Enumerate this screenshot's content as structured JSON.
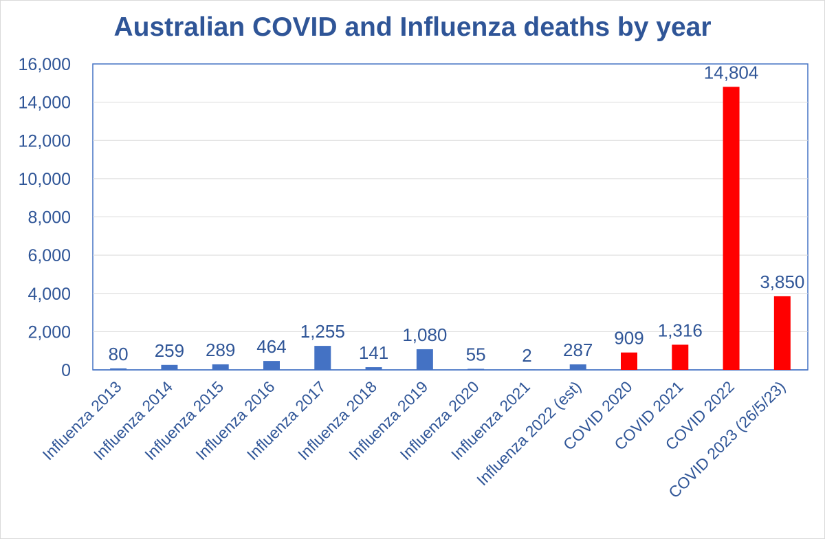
{
  "chart_data": {
    "type": "bar",
    "title": "Australian COVID and Influenza deaths by year",
    "xlabel": "",
    "ylabel": "",
    "ylim": [
      0,
      16000
    ],
    "yticks": [
      0,
      2000,
      4000,
      6000,
      8000,
      10000,
      12000,
      14000,
      16000
    ],
    "grid": true,
    "legend": "none",
    "categories": [
      "Influenza 2013",
      "Influenza 2014",
      "Influenza 2015",
      "Influenza 2016",
      "Influenza 2017",
      "Influenza 2018",
      "Influenza 2019",
      "Influenza 2020",
      "Influenza 2021",
      "Influenza 2022 (est)",
      "COVID 2020",
      "COVID 2021",
      "COVID 2022",
      "COVID 2023 (26/5/23)"
    ],
    "values": [
      80,
      259,
      289,
      464,
      1255,
      141,
      1080,
      55,
      2,
      287,
      909,
      1316,
      14804,
      3850
    ],
    "data_labels": [
      "80",
      "259",
      "289",
      "464",
      "1,255",
      "141",
      "1,080",
      "55",
      "2",
      "287",
      "909",
      "1,316",
      "14,804",
      "3,850"
    ],
    "bar_colors": [
      "#4472c4",
      "#4472c4",
      "#4472c4",
      "#4472c4",
      "#4472c4",
      "#4472c4",
      "#4472c4",
      "#4472c4",
      "#4472c4",
      "#4472c4",
      "#ff0000",
      "#ff0000",
      "#ff0000",
      "#ff0000"
    ],
    "colors": {
      "text": "#2f5597",
      "gridline": "#d9d9d9",
      "axis": "#4472c4"
    }
  }
}
